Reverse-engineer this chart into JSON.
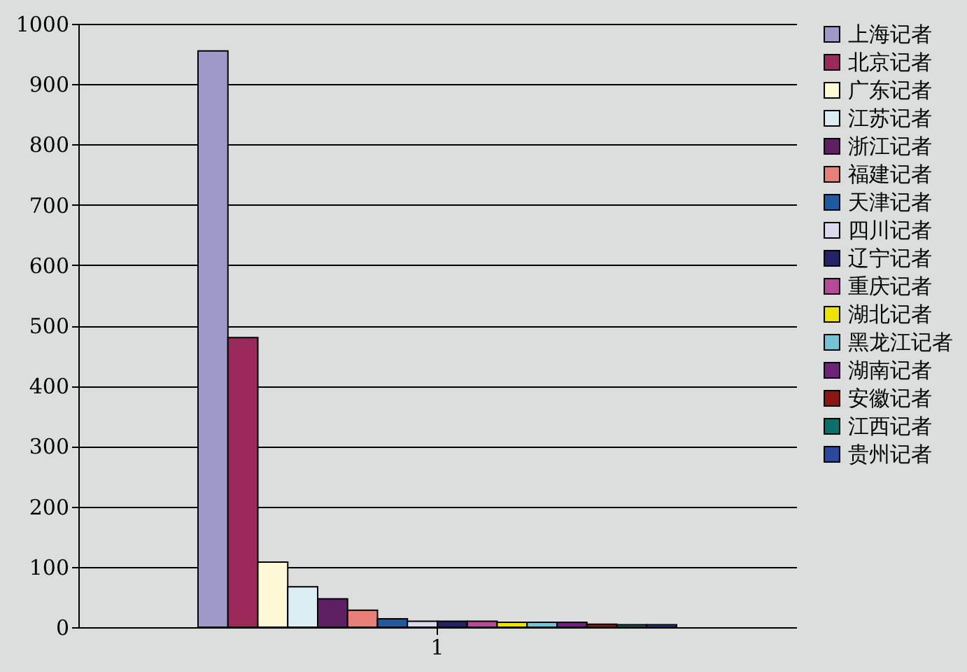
{
  "chart_data": {
    "type": "bar",
    "categories": [
      "1"
    ],
    "series": [
      {
        "name": "上海记者",
        "color": "#9e99c8",
        "values": [
          955
        ]
      },
      {
        "name": "北京记者",
        "color": "#9b2a5a",
        "values": [
          480
        ]
      },
      {
        "name": "广东记者",
        "color": "#fdf9d7",
        "values": [
          108
        ]
      },
      {
        "name": "江苏记者",
        "color": "#dbeef4",
        "values": [
          67
        ]
      },
      {
        "name": "浙江记者",
        "color": "#5e1f63",
        "values": [
          47
        ]
      },
      {
        "name": "福建记者",
        "color": "#e88079",
        "values": [
          28
        ]
      },
      {
        "name": "天津记者",
        "color": "#1f5aa0",
        "values": [
          14
        ]
      },
      {
        "name": "四川记者",
        "color": "#dcd9ee",
        "values": [
          10
        ]
      },
      {
        "name": "辽宁记者",
        "color": "#222266",
        "values": [
          10
        ]
      },
      {
        "name": "重庆记者",
        "color": "#b8489a",
        "values": [
          10
        ]
      },
      {
        "name": "湖北记者",
        "color": "#ece30a",
        "values": [
          8
        ]
      },
      {
        "name": "黑龙江记者",
        "color": "#74c4d6",
        "values": [
          8
        ]
      },
      {
        "name": "湖南记者",
        "color": "#6e2279",
        "values": [
          8
        ]
      },
      {
        "name": "安徽记者",
        "color": "#8a1616",
        "values": [
          5
        ]
      },
      {
        "name": "江西记者",
        "color": "#0a7068",
        "values": [
          4
        ]
      },
      {
        "name": "贵州记者",
        "color": "#2a48a0",
        "values": [
          4
        ]
      }
    ],
    "ylim": [
      0,
      1000
    ],
    "yticks": [
      0,
      100,
      200,
      300,
      400,
      500,
      600,
      700,
      800,
      900,
      1000
    ],
    "grid": "y",
    "legend": "right"
  }
}
